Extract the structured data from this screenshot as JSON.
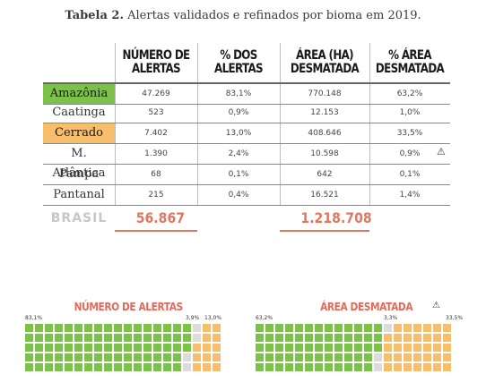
{
  "title": {
    "bold": "Tabela 2.",
    "rest": " Alertas validados e refinados por bioma em 2019."
  },
  "columns": {
    "alertas_l1": "NÚMERO DE",
    "alertas_l2": "ALERTAS",
    "pct_alertas_l1": "% DOS",
    "pct_alertas_l2": "ALERTAS",
    "area_l1": "ÁREA (HA)",
    "area_l2": "DESMATADA",
    "pct_area_l1": "% ÁREA",
    "pct_area_l2": "DESMATADA"
  },
  "rows": [
    {
      "bioma": "Amazônia",
      "alertas": "47.269",
      "pct_alertas": "83,1%",
      "area": "770.148",
      "pct_area": "63,2%",
      "highlight": "#7cc24a"
    },
    {
      "bioma": "Caatinga",
      "alertas": "523",
      "pct_alertas": "0,9%",
      "area": "12.153",
      "pct_area": "1,0%"
    },
    {
      "bioma": "Cerrado",
      "alertas": "7.402",
      "pct_alertas": "13,0%",
      "area": "408.646",
      "pct_area": "33,5%",
      "highlight": "#f7be6c"
    },
    {
      "bioma": "M. Atlântica",
      "alertas": "1.390",
      "pct_alertas": "2,4%",
      "area": "10.598",
      "pct_area": "0,9%"
    },
    {
      "bioma": "Pampa",
      "alertas": "68",
      "pct_alertas": "0,1%",
      "area": "642",
      "pct_area": "0,1%"
    },
    {
      "bioma": "Pantanal",
      "alertas": "215",
      "pct_alertas": "0,4%",
      "area": "16.521",
      "pct_area": "1,4%"
    }
  ],
  "totals": {
    "label": "BRASIL",
    "alertas": "56.867",
    "area": "1.218.708"
  },
  "warning_icon": "warning-triangle-icon",
  "colors": {
    "green": "#7cc24a",
    "gray": "#dcdcdc",
    "orange": "#f7be6c",
    "accent": "#e07760"
  },
  "waffle_alertas": {
    "title": "NÚMERO DE ALERTAS",
    "label_left": "83,1%",
    "label_mid": "3,9%",
    "label_right": "13,0%",
    "counts": {
      "green": 83,
      "gray": 4,
      "orange": 13
    }
  },
  "waffle_area": {
    "title": "ÁREA DESMATADA",
    "label_left": "63,2%",
    "label_mid": "3,3%",
    "label_right": "33,5%",
    "counts": {
      "green": 63,
      "gray": 3,
      "orange": 34
    }
  }
}
